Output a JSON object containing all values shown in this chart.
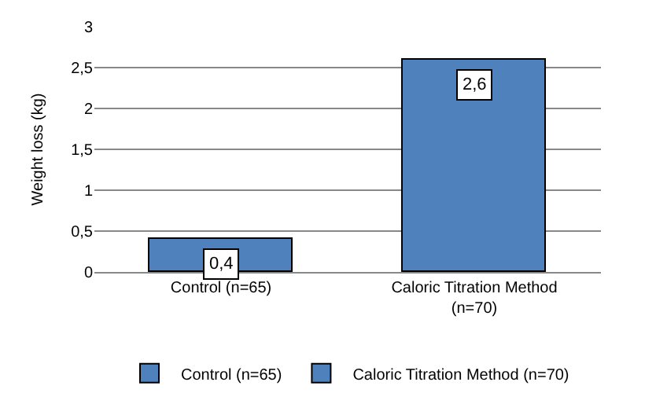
{
  "chart_data": {
    "type": "bar",
    "ylabel": "Weight loss (kg)",
    "categories": [
      "Control (n=65)",
      "Caloric Titration Method (n=70)"
    ],
    "series": [
      {
        "name": "Control (n=65)",
        "color": "#4f81bd",
        "values": [
          0.4,
          null
        ],
        "value_labels": [
          "0,4",
          null
        ]
      },
      {
        "name": "Caloric Titration Method (n=70)",
        "color": "#4f81bd",
        "values": [
          null,
          2.6
        ],
        "value_labels": [
          null,
          "2,6"
        ]
      }
    ],
    "ylim": [
      0,
      3
    ],
    "yticks": [
      0,
      {
        "value": 0.5,
        "label": "0,5"
      },
      1,
      {
        "value": 1.5,
        "label": "1,5"
      },
      2,
      {
        "value": 2.5,
        "label": "2,5"
      },
      3
    ],
    "grid": "y",
    "legend": "bottom"
  }
}
